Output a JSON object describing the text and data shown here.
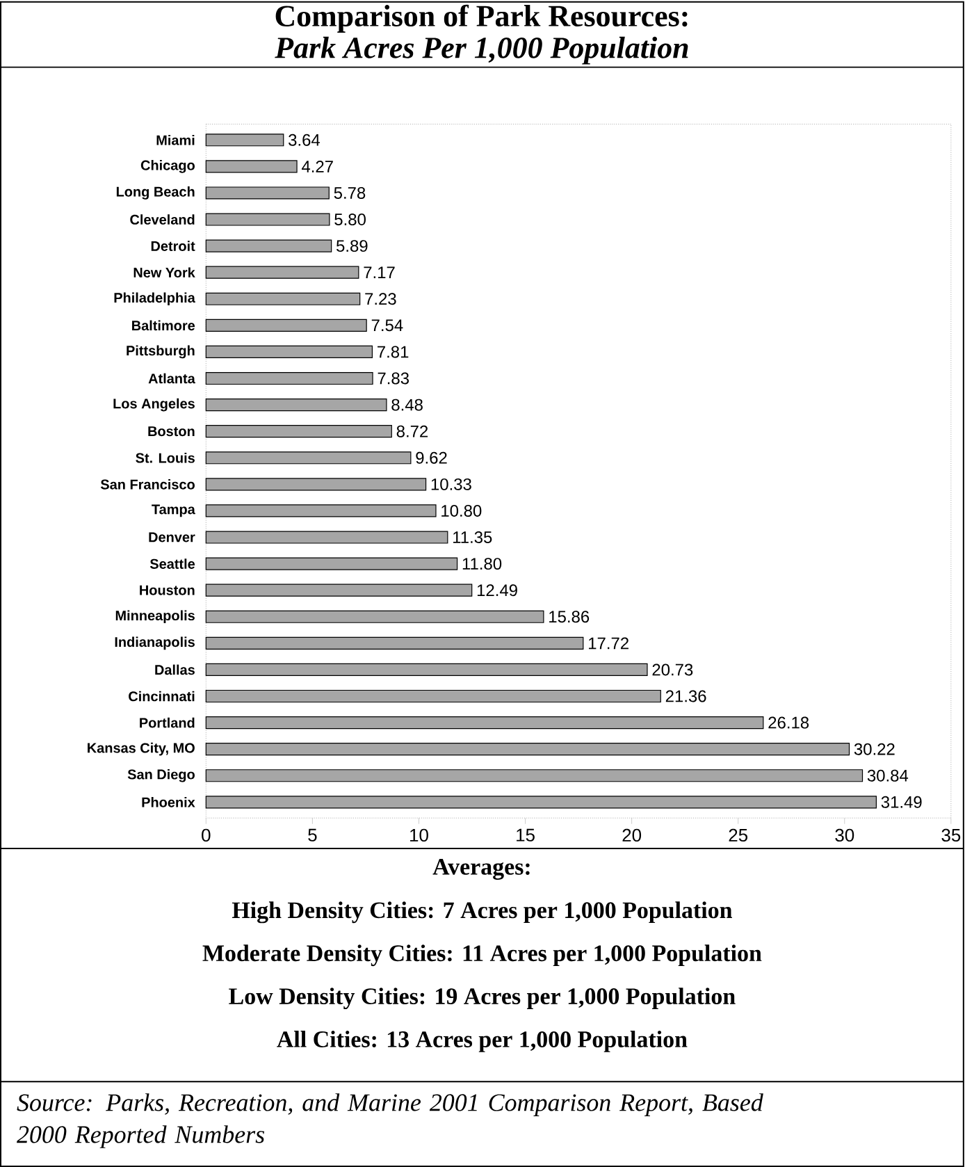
{
  "chart_data": {
    "type": "bar",
    "orientation": "horizontal",
    "title": "Comparison of Park Resources:",
    "subtitle": "Park Acres Per 1,000 Population",
    "categories": [
      "Miami",
      "Chicago",
      "Long Beach",
      "Cleveland",
      "Detroit",
      "New York",
      "Philadelphia",
      "Baltimore",
      "Pittsburgh",
      "Atlanta",
      "Los Angeles",
      "Boston",
      "St. Louis",
      "San Francisco",
      "Tampa",
      "Denver",
      "Seattle",
      "Houston",
      "Minneapolis",
      "Indianapolis",
      "Dallas",
      "Cincinnati",
      "Portland",
      "Kansas City, MO",
      "San Diego",
      "Phoenix"
    ],
    "values": [
      3.64,
      4.27,
      5.78,
      5.8,
      5.89,
      7.17,
      7.23,
      7.54,
      7.81,
      7.83,
      8.48,
      8.72,
      9.62,
      10.33,
      10.8,
      11.35,
      11.8,
      12.49,
      15.86,
      17.72,
      20.73,
      21.36,
      26.18,
      30.22,
      30.84,
      31.49
    ],
    "value_labels": [
      "3.64",
      "4.27",
      "5.78",
      "5.80",
      "5.89",
      "7.17",
      "7.23",
      "7.54",
      "7.81",
      "7.83",
      "8.48",
      "8.72",
      "9.62",
      "10.33",
      "10.80",
      "11.35",
      "11.80",
      "12.49",
      "15.86",
      "17.72",
      "20.73",
      "21.36",
      "26.18",
      "30.22",
      "30.84",
      "31.49"
    ],
    "color": "#a6a6a6",
    "xlim": [
      0,
      35
    ],
    "xticks": [
      0,
      5,
      10,
      15,
      20,
      25,
      30,
      35
    ],
    "annotations": [
      "Averages:",
      "High Density Cities: 7 Acres per 1,000 Population",
      "Moderate Density Cities: 11 Acres per 1,000 Population",
      "Low Density Cities: 19 Acres per 1,000 Population",
      "All Cities: 13 Acres per 1,000 Population",
      "Source: Parks, Recreation, and Marine 2001 Comparison Report, Based 2000 Reported Numbers"
    ]
  }
}
